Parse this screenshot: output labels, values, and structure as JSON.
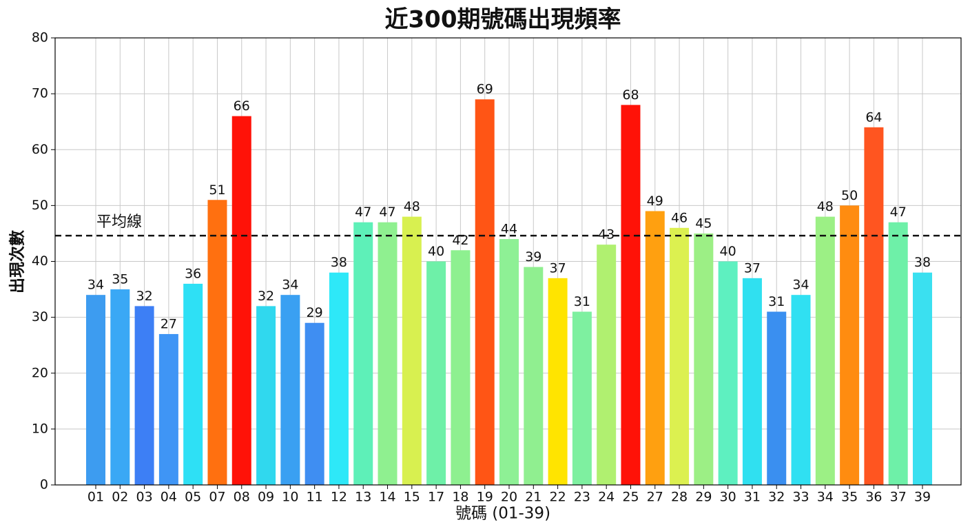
{
  "chart_data": {
    "type": "bar",
    "title": "近300期號碼出現頻率",
    "x_label": "號碼 (01-39)",
    "y_label": "出現次數",
    "categories": [
      "01",
      "02",
      "03",
      "04",
      "05",
      "07",
      "08",
      "09",
      "10",
      "11",
      "12",
      "13",
      "14",
      "15",
      "17",
      "18",
      "19",
      "20",
      "21",
      "22",
      "23",
      "24",
      "25",
      "27",
      "28",
      "29",
      "30",
      "31",
      "32",
      "33",
      "34",
      "35",
      "36",
      "37",
      "39"
    ],
    "values": [
      34,
      35,
      32,
      27,
      36,
      51,
      66,
      32,
      34,
      29,
      38,
      47,
      47,
      48,
      40,
      42,
      69,
      44,
      39,
      37,
      31,
      43,
      68,
      49,
      46,
      45,
      40,
      37,
      31,
      34,
      48,
      50,
      64,
      47,
      38
    ],
    "colors": [
      "#3d9cf0",
      "#3aa8f5",
      "#3d7ff5",
      "#3f95f5",
      "#2ee0f5",
      "#ff7010",
      "#ff1208",
      "#30d8ee",
      "#3aa0f2",
      "#3f8ef2",
      "#2ee8f8",
      "#5ef0b8",
      "#8ff090",
      "#d8f050",
      "#6ef0a8",
      "#8ef090",
      "#ff5515",
      "#8ef095",
      "#90ef90",
      "#ffe400",
      "#7ef0a0",
      "#b0f070",
      "#ff1208",
      "#ffa010",
      "#dcf050",
      "#9cef85",
      "#5ef0c0",
      "#30e0f0",
      "#3a8ff0",
      "#30e0f2",
      "#9cf085",
      "#ff8c10",
      "#ff5520",
      "#6ef0a8",
      "#3ae0f0"
    ],
    "ylim": [
      0,
      80
    ],
    "yticks": [
      0,
      10,
      20,
      30,
      40,
      50,
      60,
      70,
      80
    ],
    "grid": true,
    "average_line": {
      "label": "平均線",
      "value": 44.6
    }
  }
}
